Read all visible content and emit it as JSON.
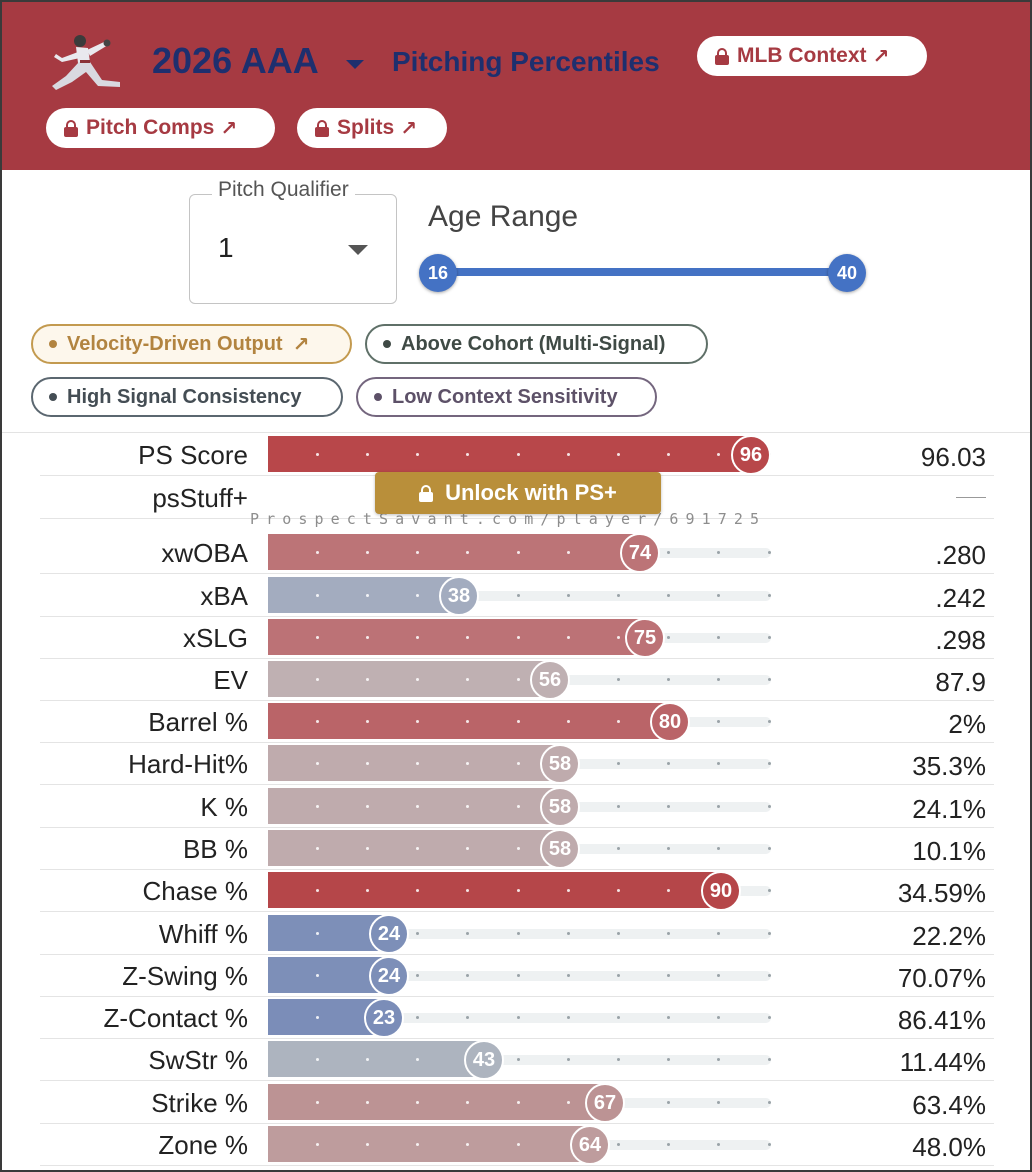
{
  "header": {
    "season": "2026 AAA",
    "title": "Pitching Percentiles",
    "buttons": {
      "mlb_context": "MLB Context",
      "pitch_comps": "Pitch Comps",
      "splits": "Splits"
    },
    "accent": "#a63a42",
    "title_color": "#1e2f6e",
    "icon": "pitcher-icon"
  },
  "filters": {
    "pitch_qualifier": {
      "label": "Pitch Qualifier",
      "value": "1"
    },
    "age_range": {
      "label": "Age Range",
      "min": "16",
      "max": "40"
    }
  },
  "tags": [
    {
      "label": "Velocity-Driven Output",
      "arrow": "↗",
      "color": "#c39a4f"
    },
    {
      "label": "Above Cohort (Multi-Signal)",
      "color": "#5f7068"
    },
    {
      "label": "High Signal Consistency",
      "color": "#5b6770"
    },
    {
      "label": "Low Context Sensitivity",
      "color": "#74667e"
    }
  ],
  "locked": {
    "unlock_label": "Unlock with PS+",
    "watermark": "ProspectSavant.com/player/691725"
  },
  "metrics": [
    {
      "label": "PS Score",
      "percentile": 96,
      "value": "96.03",
      "color": "#b8474a"
    },
    {
      "label": "psStuff+",
      "percentile": null,
      "value": "",
      "color": ""
    },
    {
      "label": "xwOBA",
      "percentile": 74,
      "value": ".280",
      "color": "#bc7477"
    },
    {
      "label": "xBA",
      "percentile": 38,
      "value": ".242",
      "color": "#a3acbf"
    },
    {
      "label": "xSLG",
      "percentile": 75,
      "value": ".298",
      "color": "#bc7276"
    },
    {
      "label": "EV",
      "percentile": 56,
      "value": "87.9",
      "color": "#bfb0b2"
    },
    {
      "label": "Barrel %",
      "percentile": 80,
      "value": "2%",
      "color": "#ba6468"
    },
    {
      "label": "Hard-Hit%",
      "percentile": 58,
      "value": "35.3%",
      "color": "#bfabad"
    },
    {
      "label": "K %",
      "percentile": 58,
      "value": "24.1%",
      "color": "#bfabad"
    },
    {
      "label": "BB %",
      "percentile": 58,
      "value": "10.1%",
      "color": "#bfabad"
    },
    {
      "label": "Chase %",
      "percentile": 90,
      "value": "34.59%",
      "color": "#b54649"
    },
    {
      "label": "Whiff %",
      "percentile": 24,
      "value": "22.2%",
      "color": "#7d8fb8"
    },
    {
      "label": "Z-Swing %",
      "percentile": 24,
      "value": "70.07%",
      "color": "#7d8fb8"
    },
    {
      "label": "Z-Contact %",
      "percentile": 23,
      "value": "86.41%",
      "color": "#7b8db8"
    },
    {
      "label": "SwStr %",
      "percentile": 43,
      "value": "11.44%",
      "color": "#adb4bf"
    },
    {
      "label": "Strike %",
      "percentile": 67,
      "value": "63.4%",
      "color": "#bc9394"
    },
    {
      "label": "Zone %",
      "percentile": 64,
      "value": "48.0%",
      "color": "#be9c9d"
    }
  ]
}
